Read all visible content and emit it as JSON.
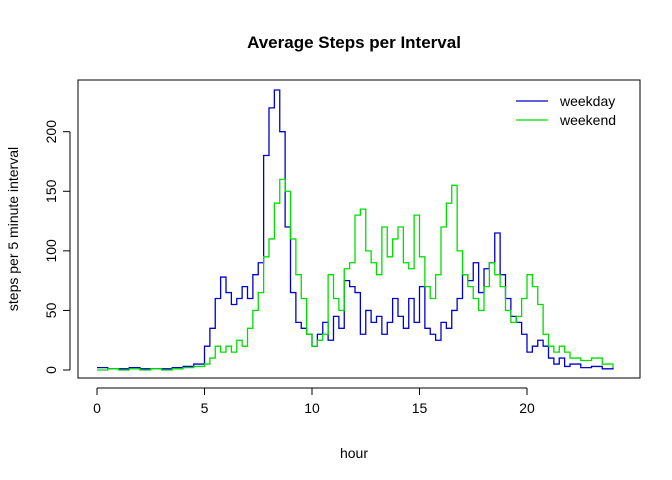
{
  "chart_data": {
    "type": "line",
    "title": "Average Steps per Interval",
    "xlabel": "hour",
    "ylabel": "steps per 5 minute interval",
    "xlim": [
      0,
      24
    ],
    "ylim": [
      0,
      235
    ],
    "x_ticks": [
      0,
      5,
      10,
      15,
      20
    ],
    "x_tick_labels": [
      "0",
      "5",
      "10",
      "15",
      "20"
    ],
    "y_ticks": [
      0,
      50,
      100,
      150,
      200
    ],
    "y_tick_labels": [
      "0",
      "50",
      "100",
      "150",
      "200"
    ],
    "legend_position": "top-right",
    "line_style": "step",
    "series": [
      {
        "name": "weekday",
        "color": "#0000CD",
        "x": [
          0,
          0.5,
          1,
          1.5,
          2,
          2.5,
          3,
          3.5,
          4,
          4.5,
          5,
          5.25,
          5.5,
          5.75,
          6,
          6.25,
          6.5,
          6.75,
          7,
          7.25,
          7.5,
          7.75,
          8,
          8.25,
          8.5,
          8.75,
          9,
          9.25,
          9.5,
          9.75,
          10,
          10.25,
          10.5,
          10.75,
          11,
          11.25,
          11.5,
          11.75,
          12,
          12.25,
          12.5,
          12.75,
          13,
          13.25,
          13.5,
          13.75,
          14,
          14.25,
          14.5,
          14.75,
          15,
          15.25,
          15.5,
          15.75,
          16,
          16.25,
          16.5,
          16.75,
          17,
          17.25,
          17.5,
          17.75,
          18,
          18.25,
          18.5,
          18.75,
          19,
          19.25,
          19.5,
          19.75,
          20,
          20.25,
          20.5,
          20.75,
          21,
          21.25,
          21.5,
          21.75,
          22,
          22.5,
          23,
          23.5,
          24
        ],
        "y": [
          2,
          1,
          1,
          2,
          1,
          1,
          1,
          2,
          3,
          5,
          20,
          35,
          60,
          78,
          65,
          55,
          60,
          70,
          60,
          80,
          90,
          180,
          220,
          235,
          200,
          120,
          65,
          40,
          35,
          30,
          20,
          30,
          40,
          25,
          45,
          35,
          75,
          70,
          65,
          30,
          50,
          40,
          45,
          30,
          40,
          60,
          45,
          35,
          60,
          40,
          70,
          35,
          30,
          25,
          40,
          35,
          50,
          60,
          80,
          75,
          90,
          65,
          85,
          90,
          115,
          80,
          60,
          45,
          40,
          30,
          15,
          20,
          25,
          20,
          10,
          5,
          10,
          3,
          5,
          2,
          3,
          1,
          2
        ]
      },
      {
        "name": "weekend",
        "color": "#00DD00",
        "x": [
          0,
          0.5,
          1,
          1.5,
          2,
          2.5,
          3,
          3.5,
          4,
          4.5,
          5,
          5.25,
          5.5,
          5.75,
          6,
          6.25,
          6.5,
          6.75,
          7,
          7.25,
          7.5,
          7.75,
          8,
          8.25,
          8.5,
          8.75,
          9,
          9.25,
          9.5,
          9.75,
          10,
          10.25,
          10.5,
          10.75,
          11,
          11.25,
          11.5,
          11.75,
          12,
          12.25,
          12.5,
          12.75,
          13,
          13.25,
          13.5,
          13.75,
          14,
          14.25,
          14.5,
          14.75,
          15,
          15.25,
          15.5,
          15.75,
          16,
          16.25,
          16.5,
          16.75,
          17,
          17.25,
          17.5,
          17.75,
          18,
          18.25,
          18.5,
          18.75,
          19,
          19.25,
          19.5,
          19.75,
          20,
          20.25,
          20.5,
          20.75,
          21,
          21.25,
          21.5,
          21.75,
          22,
          22.5,
          23,
          23.5,
          24
        ],
        "y": [
          0,
          1,
          0,
          1,
          0,
          1,
          0,
          1,
          2,
          3,
          5,
          10,
          20,
          15,
          20,
          15,
          25,
          20,
          35,
          50,
          65,
          95,
          110,
          140,
          160,
          150,
          110,
          80,
          60,
          30,
          20,
          25,
          30,
          80,
          60,
          50,
          85,
          90,
          130,
          135,
          100,
          90,
          80,
          120,
          95,
          110,
          120,
          90,
          85,
          130,
          95,
          70,
          60,
          80,
          120,
          140,
          155,
          100,
          80,
          70,
          60,
          50,
          70,
          90,
          80,
          70,
          50,
          40,
          45,
          60,
          80,
          70,
          55,
          30,
          20,
          15,
          20,
          15,
          10,
          8,
          10,
          5,
          2
        ]
      }
    ]
  }
}
